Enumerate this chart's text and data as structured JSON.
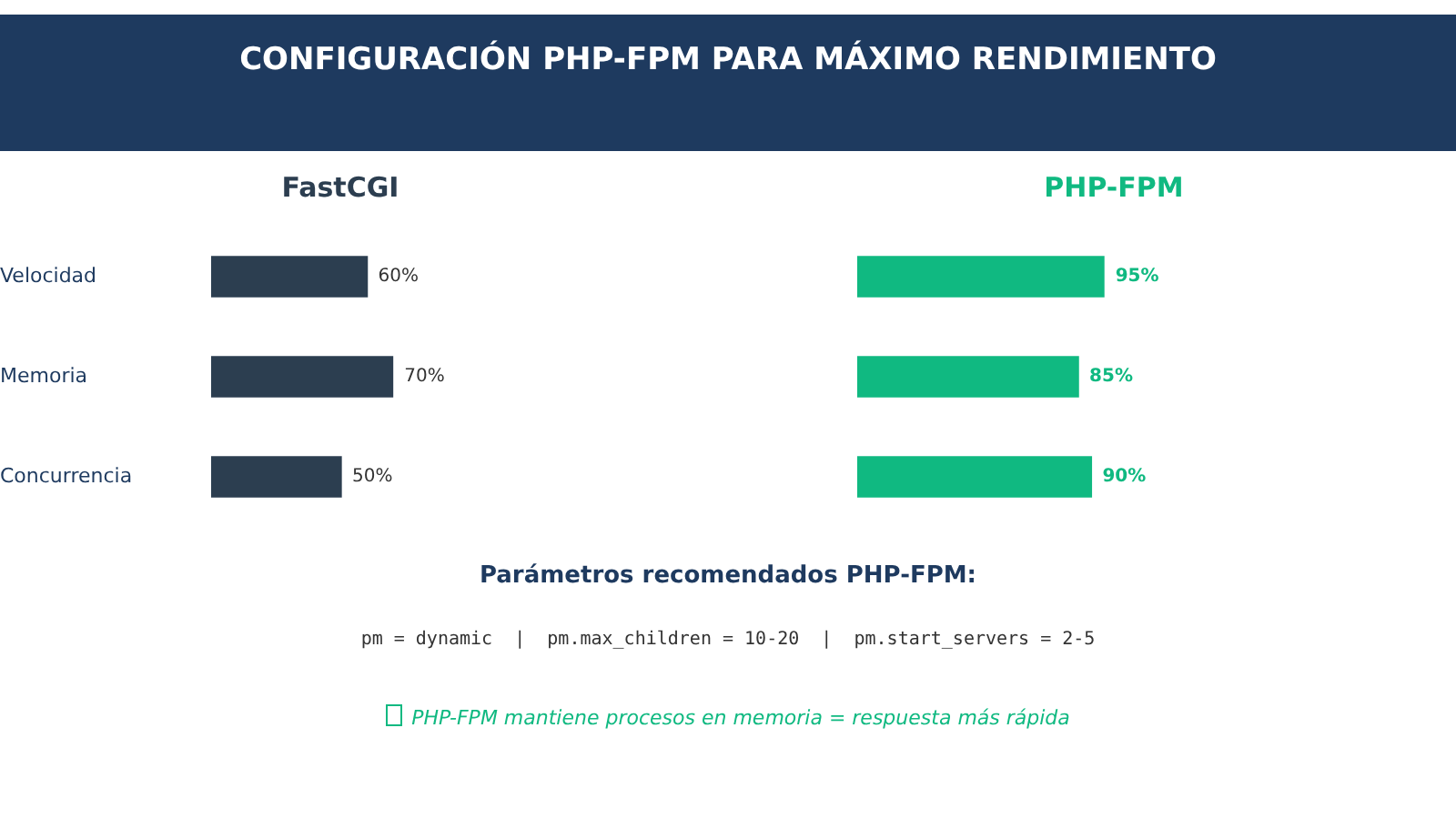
{
  "chart_data": [
    {
      "type": "other",
      "title": "CONFIGURACIÓN PHP-FPM PARA MÁXIMO RENDIMIENTO"
    },
    {
      "type": "bar",
      "orientation": "horizontal",
      "title": "FastCGI",
      "categories": [
        "Velocidad",
        "Memoria",
        "Concurrencia"
      ],
      "values": [
        60,
        70,
        50
      ],
      "value_labels": [
        "60%",
        "70%",
        "50%"
      ],
      "color": "#2c3e50",
      "tick_labels": "y"
    },
    {
      "type": "bar",
      "orientation": "horizontal",
      "title": "PHP-FPM",
      "categories": [
        null,
        null,
        null
      ],
      "values": [
        95,
        85,
        90
      ],
      "value_labels": [
        "95%",
        "85%",
        "90%"
      ],
      "color": "#10b981",
      "tick_labels": false
    },
    {
      "type": "other",
      "title": "Parámetros recomendados PHP-FPM:",
      "annotations": [
        "pm = dynamic  |  pm.max_children = 10-20  |  pm.start_servers = 2-5",
        "PHP-FPM mantiene procesos en memoria = respuesta más rápida"
      ]
    }
  ]
}
